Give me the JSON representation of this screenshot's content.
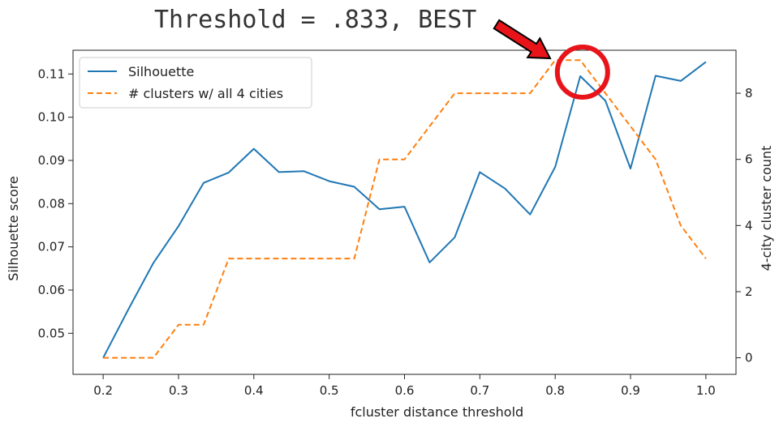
{
  "annotation": {
    "text": "Threshold = .833, BEST",
    "arrow_color": "#e8141a",
    "circle_color": "#e8141a",
    "target_x": 0.833,
    "target_y": 0.1095
  },
  "chart_data": {
    "type": "line",
    "xlabel": "fcluster distance threshold",
    "ylabel": "Silhouette score",
    "y2label": "4-city cluster count",
    "xlim": [
      0.16,
      1.04
    ],
    "ylim": [
      0.0405,
      0.1155
    ],
    "y2lim": [
      -0.5,
      9.3
    ],
    "xticks": [
      "0.2",
      "0.3",
      "0.4",
      "0.5",
      "0.6",
      "0.7",
      "0.8",
      "0.9",
      "1.0"
    ],
    "yticks": [
      "0.05",
      "0.06",
      "0.07",
      "0.08",
      "0.09",
      "0.10",
      "0.11"
    ],
    "y2ticks": [
      "0",
      "2",
      "4",
      "6",
      "8"
    ],
    "legend_position": "top-left",
    "x": [
      0.2,
      0.2333,
      0.2667,
      0.3,
      0.3333,
      0.3667,
      0.4,
      0.4333,
      0.4667,
      0.5,
      0.5333,
      0.5667,
      0.6,
      0.6333,
      0.6667,
      0.7,
      0.7333,
      0.7667,
      0.8,
      0.8333,
      0.8667,
      0.9,
      0.9333,
      0.9667,
      1.0
    ],
    "series": [
      {
        "name": "Silhouette",
        "axis": "left",
        "color": "#1f77b4",
        "style": "solid",
        "values": [
          0.0443,
          0.0555,
          0.0663,
          0.0748,
          0.0848,
          0.0872,
          0.0927,
          0.0873,
          0.0875,
          0.0852,
          0.0839,
          0.0787,
          0.0793,
          0.0664,
          0.0722,
          0.0873,
          0.0835,
          0.0775,
          0.0885,
          0.1095,
          0.1038,
          0.0881,
          0.1096,
          0.1084,
          0.1128
        ]
      },
      {
        "name": "# clusters w/ all 4 cities",
        "axis": "right",
        "color": "#ff7f0e",
        "style": "dashed",
        "values": [
          0,
          0,
          0,
          1,
          1,
          3,
          3,
          3,
          3,
          3,
          3,
          6,
          6,
          7,
          8,
          8,
          8,
          8,
          9,
          9,
          8,
          7,
          6,
          4,
          3
        ]
      }
    ]
  }
}
